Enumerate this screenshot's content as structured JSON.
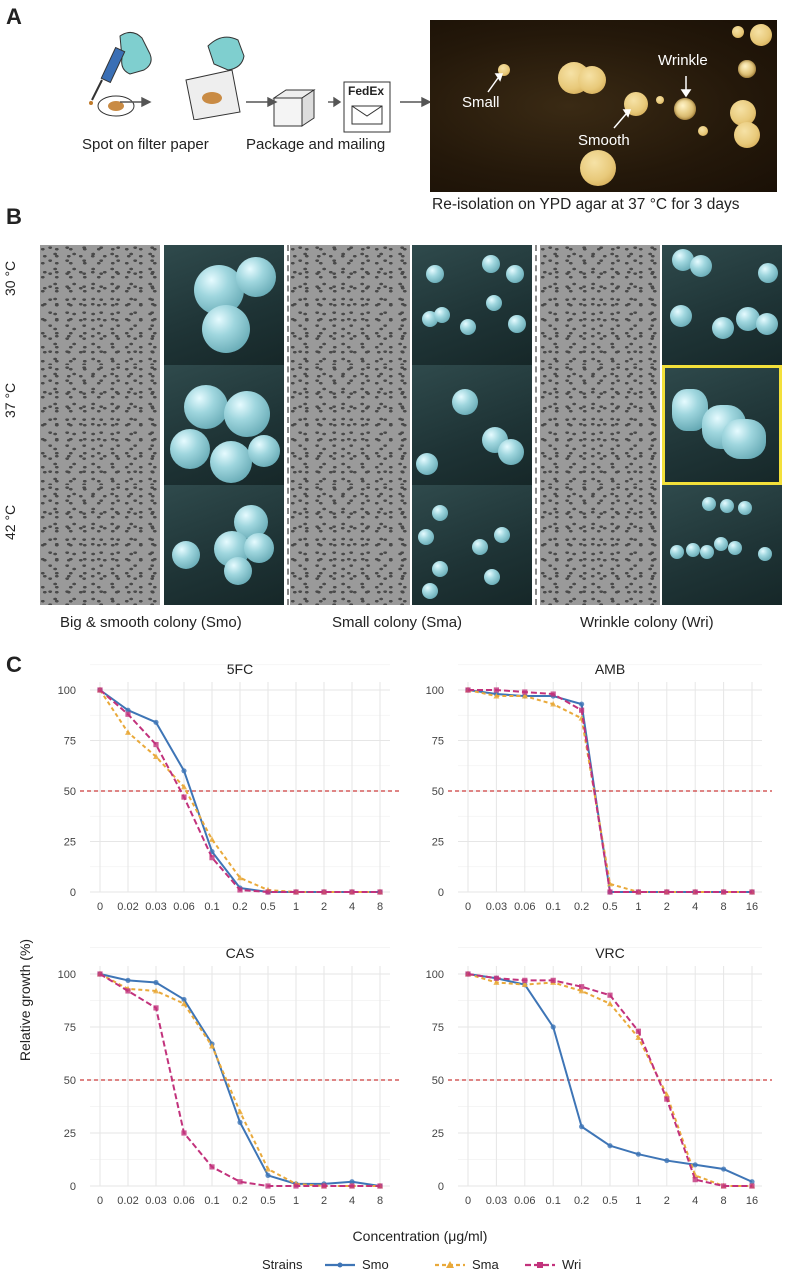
{
  "panel_letters": {
    "a": "A",
    "b": "B",
    "c": "C"
  },
  "panel_a": {
    "steps": [
      "Spot on filter paper",
      "Package and mailing"
    ],
    "fedex_label": "FedEx",
    "agar_labels": {
      "small": "Small",
      "smooth": "Smooth",
      "wrinkle": "Wrinkle"
    },
    "caption": "Re-isolation on YPD agar at 37 °C for 3 days"
  },
  "panel_b": {
    "temperatures": [
      "30 °C",
      "37 °C",
      "42 °C"
    ],
    "columns": [
      "Big & smooth colony (Smo)",
      "Small colony (Sma)",
      "Wrinkle colony (Wri)"
    ]
  },
  "panel_c": {
    "ylabel": "Relative growth (%)",
    "xlabel": "Concentration (μg/ml)",
    "legend_title": "Strains",
    "colors": {
      "Smo": "#3e75b6",
      "Sma": "#e9a93a",
      "Wri": "#c2327c",
      "threshold": "#cc3b3b"
    }
  },
  "chart_data": [
    {
      "type": "line",
      "title": "5FC",
      "categories": [
        "0",
        "0.02",
        "0.03",
        "0.06",
        "0.1",
        "0.2",
        "0.5",
        "1",
        "2",
        "4",
        "8"
      ],
      "ylim": [
        0,
        100
      ],
      "yticks": [
        0,
        25,
        50,
        75,
        100
      ],
      "hline": 50,
      "grid": true,
      "series": [
        {
          "name": "Smo",
          "values": [
            100,
            90,
            84,
            60,
            20,
            2,
            0,
            0,
            0,
            0,
            0
          ]
        },
        {
          "name": "Sma",
          "values": [
            100,
            79,
            67,
            52,
            26,
            7,
            1,
            0,
            0,
            0,
            0
          ]
        },
        {
          "name": "Wri",
          "values": [
            100,
            88,
            73,
            47,
            17,
            1,
            0,
            0,
            0,
            0,
            0
          ]
        }
      ]
    },
    {
      "type": "line",
      "title": "AMB",
      "categories": [
        "0",
        "0.03",
        "0.06",
        "0.1",
        "0.2",
        "0.5",
        "1",
        "2",
        "4",
        "8",
        "16"
      ],
      "ylim": [
        0,
        100
      ],
      "yticks": [
        0,
        25,
        50,
        75,
        100
      ],
      "hline": 50,
      "grid": true,
      "series": [
        {
          "name": "Smo",
          "values": [
            100,
            98,
            97,
            97,
            93,
            0,
            0,
            0,
            0,
            0,
            0
          ]
        },
        {
          "name": "Sma",
          "values": [
            100,
            97,
            97,
            93,
            86,
            4,
            0,
            0,
            0,
            0,
            0
          ]
        },
        {
          "name": "Wri",
          "values": [
            100,
            100,
            99,
            98,
            90,
            0,
            0,
            0,
            0,
            0,
            0
          ]
        }
      ]
    },
    {
      "type": "line",
      "title": "CAS",
      "categories": [
        "0",
        "0.02",
        "0.03",
        "0.06",
        "0.1",
        "0.2",
        "0.5",
        "1",
        "2",
        "4",
        "8"
      ],
      "ylim": [
        0,
        100
      ],
      "yticks": [
        0,
        25,
        50,
        75,
        100
      ],
      "hline": 50,
      "grid": true,
      "series": [
        {
          "name": "Smo",
          "values": [
            100,
            97,
            96,
            88,
            67,
            30,
            5,
            1,
            1,
            2,
            0
          ]
        },
        {
          "name": "Sma",
          "values": [
            100,
            93,
            92,
            86,
            66,
            35,
            8,
            1,
            0,
            0,
            0
          ]
        },
        {
          "name": "Wri",
          "values": [
            100,
            92,
            84,
            25,
            9,
            2,
            0,
            0,
            0,
            0,
            0
          ]
        }
      ]
    },
    {
      "type": "line",
      "title": "VRC",
      "categories": [
        "0",
        "0.03",
        "0.06",
        "0.1",
        "0.2",
        "0.5",
        "1",
        "2",
        "4",
        "8",
        "16"
      ],
      "ylim": [
        0,
        100
      ],
      "yticks": [
        0,
        25,
        50,
        75,
        100
      ],
      "hline": 50,
      "grid": true,
      "series": [
        {
          "name": "Smo",
          "values": [
            100,
            98,
            95,
            75,
            28,
            19,
            15,
            12,
            10,
            8,
            2
          ]
        },
        {
          "name": "Sma",
          "values": [
            100,
            96,
            95,
            96,
            92,
            86,
            70,
            43,
            5,
            0,
            0
          ]
        },
        {
          "name": "Wri",
          "values": [
            100,
            98,
            97,
            97,
            94,
            90,
            73,
            41,
            3,
            0,
            0
          ]
        }
      ]
    }
  ]
}
